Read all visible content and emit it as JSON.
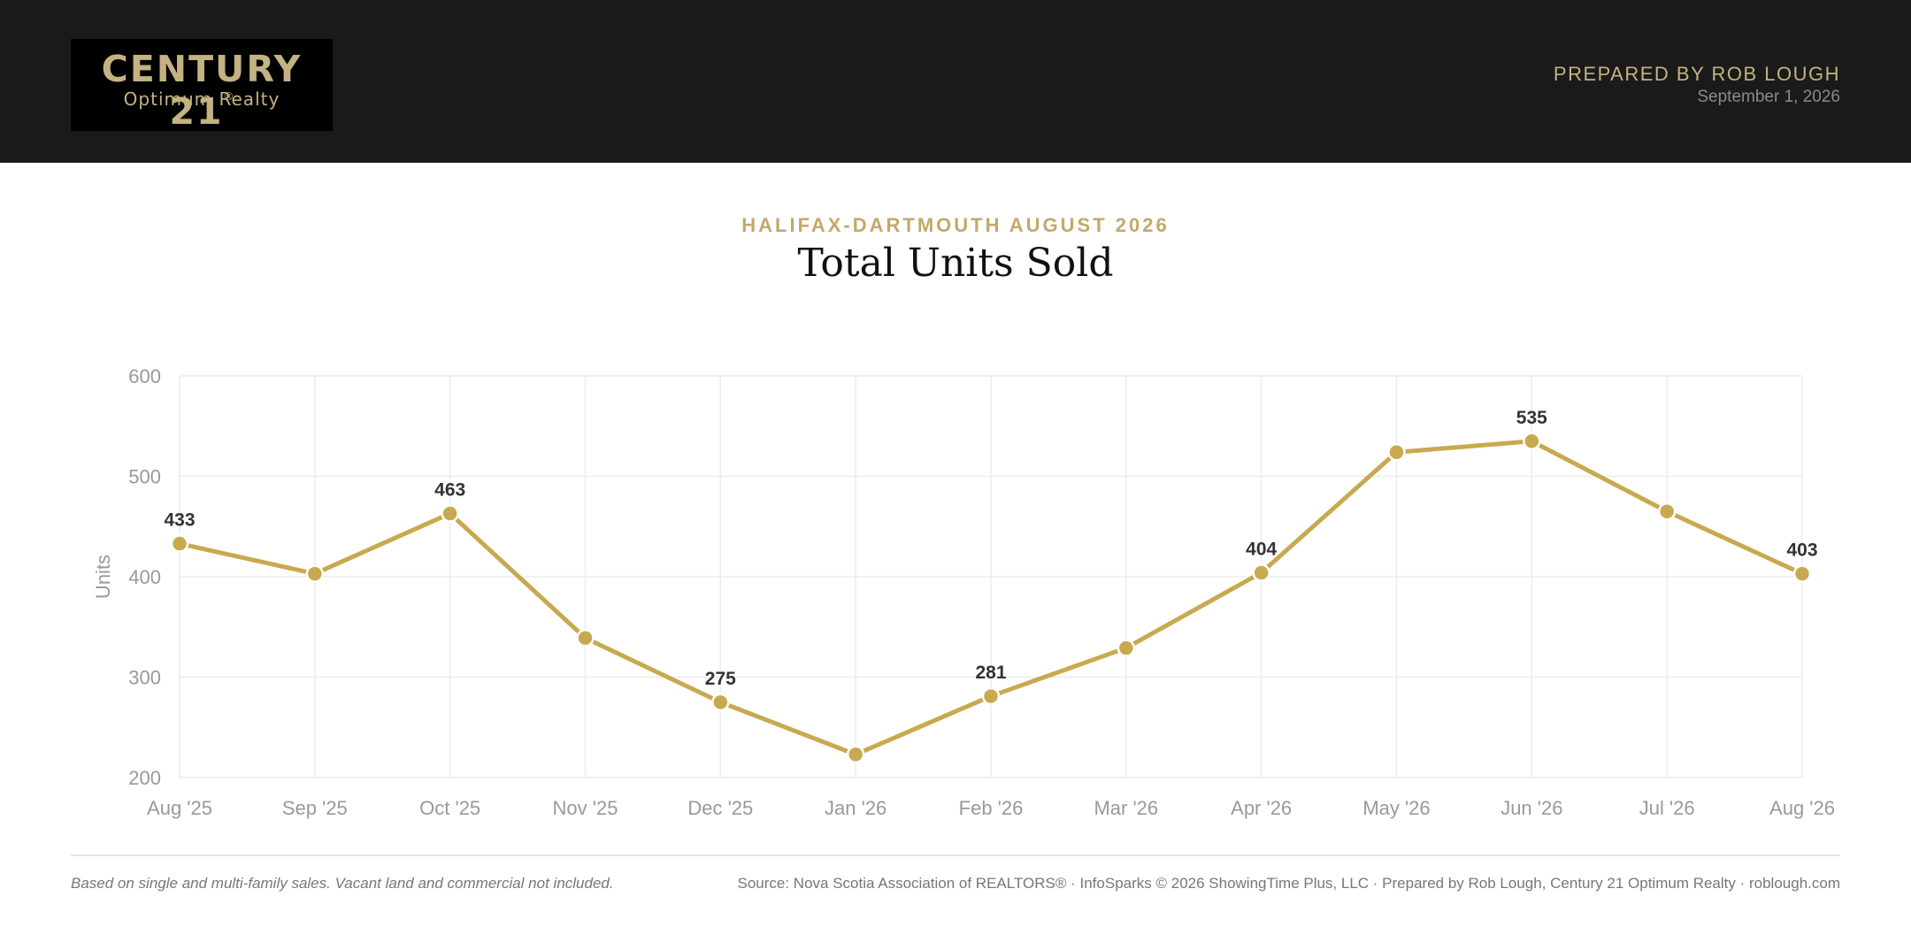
{
  "header": {
    "logo_brand": "CENTURY 21",
    "logo_reg": "®",
    "logo_sub": "Optimum Realty",
    "prepared_by": "PREPARED BY ROB LOUGH",
    "date": "September 1, 2026"
  },
  "report": {
    "subtitle": "HALIFAX-DARTMOUTH AUGUST 2026",
    "title": "Total Units Sold"
  },
  "footer": {
    "note": "Based on single and multi-family sales. Vacant land and commercial not included.",
    "source": "Source: Nova Scotia Association of REALTORS® · InfoSparks © 2026 ShowingTime Plus, LLC · Prepared by Rob Lough, Century 21 Optimum Realty · roblough.com"
  },
  "colors": {
    "accent": "#c9a94f",
    "header_bg": "#1a1a1a",
    "gold_text": "#c4b282"
  },
  "chart_data": {
    "type": "line",
    "title": "Total Units Sold",
    "xlabel": "",
    "ylabel": "Units",
    "ylim": [
      200,
      600
    ],
    "yticks": [
      200,
      300,
      400,
      500,
      600
    ],
    "grid": true,
    "categories": [
      "Aug '25",
      "Sep '25",
      "Oct '25",
      "Nov '25",
      "Dec '25",
      "Jan '26",
      "Feb '26",
      "Mar '26",
      "Apr '26",
      "May '26",
      "Jun '26",
      "Jul '26",
      "Aug '26"
    ],
    "series": [
      {
        "values": [
          433,
          403,
          463,
          339,
          275,
          223,
          281,
          329,
          404,
          524,
          535,
          465,
          403
        ],
        "labeled": [
          true,
          false,
          true,
          false,
          true,
          false,
          true,
          false,
          true,
          false,
          true,
          false,
          true
        ]
      }
    ]
  }
}
